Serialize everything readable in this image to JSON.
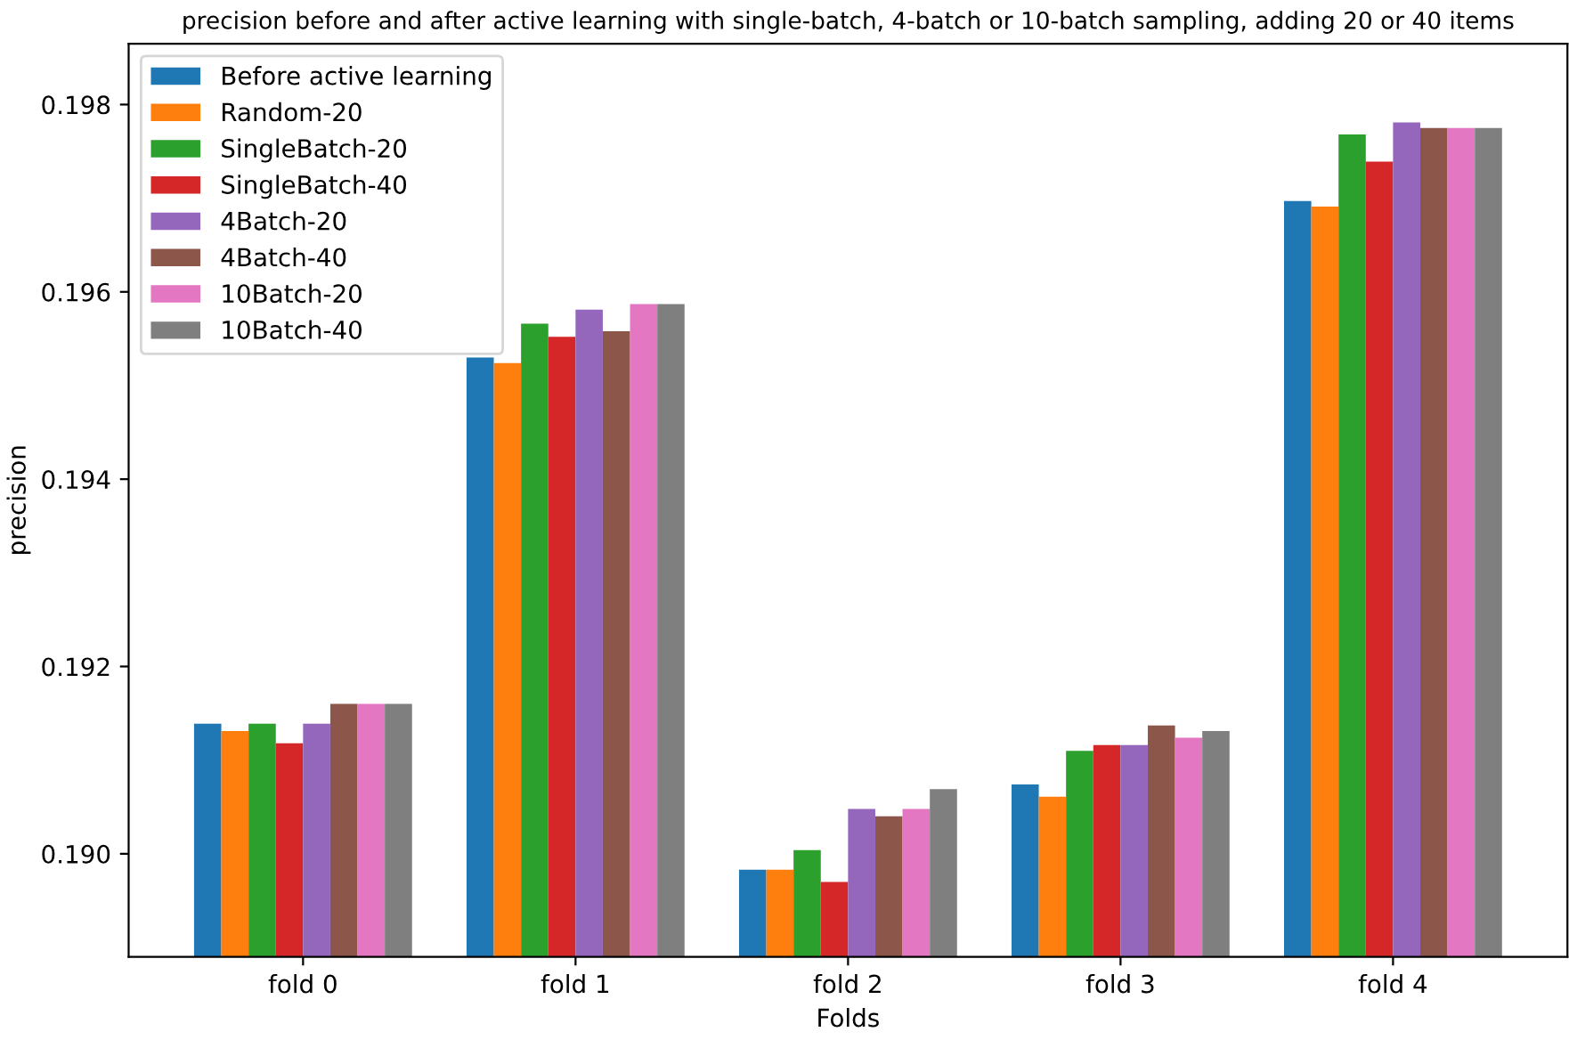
{
  "chart_data": {
    "type": "bar",
    "title": "precision before and after active learning with single-batch, 4-batch or 10-batch sampling, adding 20 or 40 items",
    "xlabel": "Folds",
    "ylabel": "precision",
    "categories": [
      "fold 0",
      "fold 1",
      "fold 2",
      "fold 3",
      "fold 4"
    ],
    "series": [
      {
        "name": "Before active learning",
        "color": "#1f77b4",
        "values": [
          0.19139,
          0.1953,
          0.18983,
          0.19074,
          0.19697
        ]
      },
      {
        "name": "Random-20",
        "color": "#ff7f0e",
        "values": [
          0.19131,
          0.19524,
          0.18983,
          0.19061,
          0.19691
        ]
      },
      {
        "name": "SingleBatch-20",
        "color": "#2ca02c",
        "values": [
          0.19139,
          0.19566,
          0.19004,
          0.1911,
          0.19768
        ]
      },
      {
        "name": "SingleBatch-40",
        "color": "#d62728",
        "values": [
          0.19118,
          0.19552,
          0.1897,
          0.19116,
          0.19739
        ]
      },
      {
        "name": "4Batch-20",
        "color": "#9467bd",
        "values": [
          0.19139,
          0.19581,
          0.19048,
          0.19116,
          0.19781
        ]
      },
      {
        "name": "4Batch-40",
        "color": "#8c564b",
        "values": [
          0.1916,
          0.19558,
          0.1904,
          0.19137,
          0.19775
        ]
      },
      {
        "name": "10Batch-20",
        "color": "#e377c2",
        "values": [
          0.1916,
          0.19587,
          0.19048,
          0.19124,
          0.19775
        ]
      },
      {
        "name": "10Batch-40",
        "color": "#7f7f7f",
        "values": [
          0.1916,
          0.19587,
          0.19069,
          0.19131,
          0.19775
        ]
      }
    ],
    "ylim": [
      0.1889,
      0.19865
    ],
    "yticks": [
      {
        "value": 0.19,
        "label": "0.190"
      },
      {
        "value": 0.192,
        "label": "0.192"
      },
      {
        "value": 0.194,
        "label": "0.194"
      },
      {
        "value": 0.196,
        "label": "0.196"
      },
      {
        "value": 0.198,
        "label": "0.198"
      }
    ],
    "grid": false,
    "legend": "top left"
  }
}
